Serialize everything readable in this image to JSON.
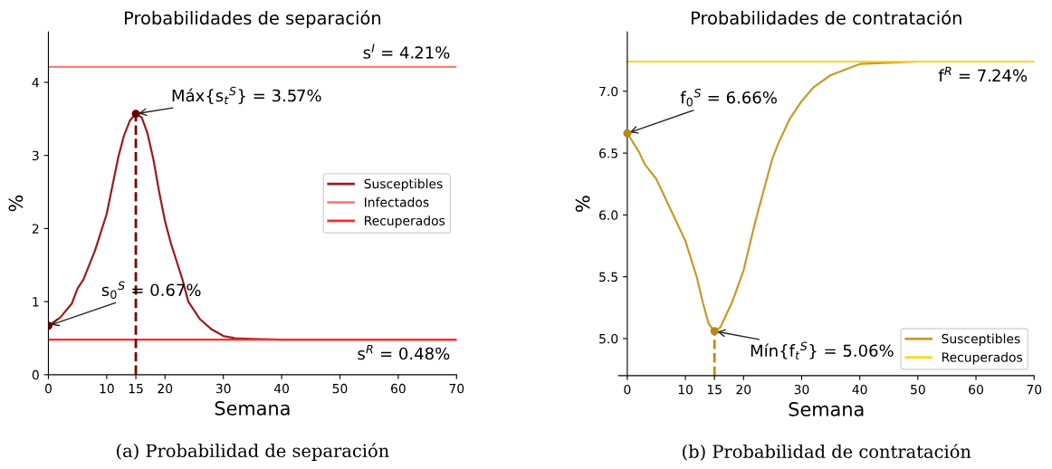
{
  "chart_data": [
    {
      "type": "line",
      "title": "Probabilidades de separación",
      "xlabel": "Semana",
      "ylabel": "%",
      "xlim": [
        0,
        70
      ],
      "xticks": [
        0,
        10,
        15,
        20,
        30,
        40,
        50,
        60,
        70
      ],
      "ylim": [
        0,
        4.69
      ],
      "yticks": [
        0,
        1,
        2,
        3,
        4
      ],
      "legend": "right",
      "grid": false,
      "marker": "none",
      "line_style": "solid",
      "series": [
        {
          "name": "Susceptibles",
          "color": "#9b1c1c",
          "x": [
            0,
            2,
            4,
            5,
            6,
            8,
            10,
            12,
            13,
            14,
            15,
            16,
            17,
            18,
            19,
            20,
            21,
            22,
            23,
            24,
            25,
            26,
            28,
            30,
            32,
            35,
            40,
            50,
            70
          ],
          "values": [
            0.67,
            0.78,
            0.97,
            1.18,
            1.3,
            1.7,
            2.2,
            2.98,
            3.28,
            3.48,
            3.57,
            3.52,
            3.3,
            2.95,
            2.5,
            2.1,
            1.8,
            1.55,
            1.3,
            1.0,
            0.88,
            0.76,
            0.62,
            0.53,
            0.5,
            0.49,
            0.48,
            0.48,
            0.48
          ]
        },
        {
          "name": "Infectados",
          "color": "#fa8072",
          "x": [
            0,
            70
          ],
          "values": [
            4.21,
            4.21
          ]
        },
        {
          "name": "Recuperados",
          "color": "#ff2a2a",
          "x": [
            0,
            70
          ],
          "values": [
            0.48,
            0.48
          ]
        },
        {
          "type": "line",
          "line_style": "dashed",
          "color": "#7a0000",
          "x": [
            15,
            15
          ],
          "values": [
            0,
            3.57
          ]
        },
        {
          "type": "scatter",
          "marker": "circle",
          "color": "#6b0000",
          "x": [
            0,
            15
          ],
          "values": [
            0.67,
            3.57
          ]
        }
      ],
      "annotations": [
        "(a) Probabilidad de separación",
        {
          "text": "s$^{I}$ = 4.21%",
          "x": 70,
          "y": 4.21
        },
        {
          "text": "Máx{s$_{t}$$^{S}$} = 3.57%",
          "x": 15,
          "y": 3.57
        },
        {
          "text": "s$_{0}$$^{S}$ = 0.67%",
          "x": 0,
          "y": 0.67
        },
        {
          "text": "s$^{R}$ = 0.48%",
          "x": 70,
          "y": 0.48
        }
      ]
    },
    {
      "type": "line",
      "title": "Probabilidades de contratación",
      "xlabel": "Semana",
      "ylabel": "%",
      "xlim": [
        -1.5,
        70
      ],
      "xticks": [
        0,
        10,
        15,
        20,
        30,
        40,
        50,
        60,
        70
      ],
      "ylim": [
        4.7,
        7.48
      ],
      "yticks": [
        {
          "value": 5,
          "label": "5.0"
        },
        5.5,
        {
          "value": 6,
          "label": "6.0"
        },
        6.5,
        {
          "value": 7,
          "label": "7.0"
        }
      ],
      "legend": "bottom right",
      "grid": false,
      "marker": "none",
      "line_style": "solid",
      "series": [
        {
          "name": "Susceptibles",
          "color": "#c89a2a",
          "x": [
            0,
            2,
            3,
            5,
            8,
            10,
            12,
            13,
            14,
            15,
            16,
            18,
            20,
            22,
            24,
            25,
            26,
            28,
            30,
            32,
            35,
            40,
            50,
            70
          ],
          "values": [
            6.66,
            6.51,
            6.41,
            6.29,
            5.99,
            5.79,
            5.49,
            5.29,
            5.12,
            5.06,
            5.09,
            5.29,
            5.55,
            5.94,
            6.29,
            6.46,
            6.58,
            6.78,
            6.92,
            7.03,
            7.13,
            7.22,
            7.24,
            7.24
          ]
        },
        {
          "name": "Recuperados",
          "color": "#ffd51a",
          "x": [
            0,
            70
          ],
          "values": [
            7.24,
            7.24
          ]
        },
        {
          "type": "line",
          "line_style": "dashed",
          "color": "#c08a10",
          "x": [
            15,
            15
          ],
          "values": [
            4.7,
            5.06
          ]
        },
        {
          "type": "scatter",
          "marker": "circle",
          "color": "#b8861b",
          "x": [
            0,
            15
          ],
          "values": [
            6.66,
            5.06
          ]
        }
      ],
      "annotations": [
        "(b) Probabilidad de contratación",
        {
          "text": "f$_{0}$$^{S}$ = 6.66%",
          "x": 0,
          "y": 6.66
        },
        {
          "text": "Mín{f$_{t}$$^{S}$} = 5.06%",
          "x": 15,
          "y": 5.06
        },
        {
          "text": "f$^{R}$ = 7.24%",
          "x": 70,
          "y": 7.24
        }
      ]
    }
  ]
}
